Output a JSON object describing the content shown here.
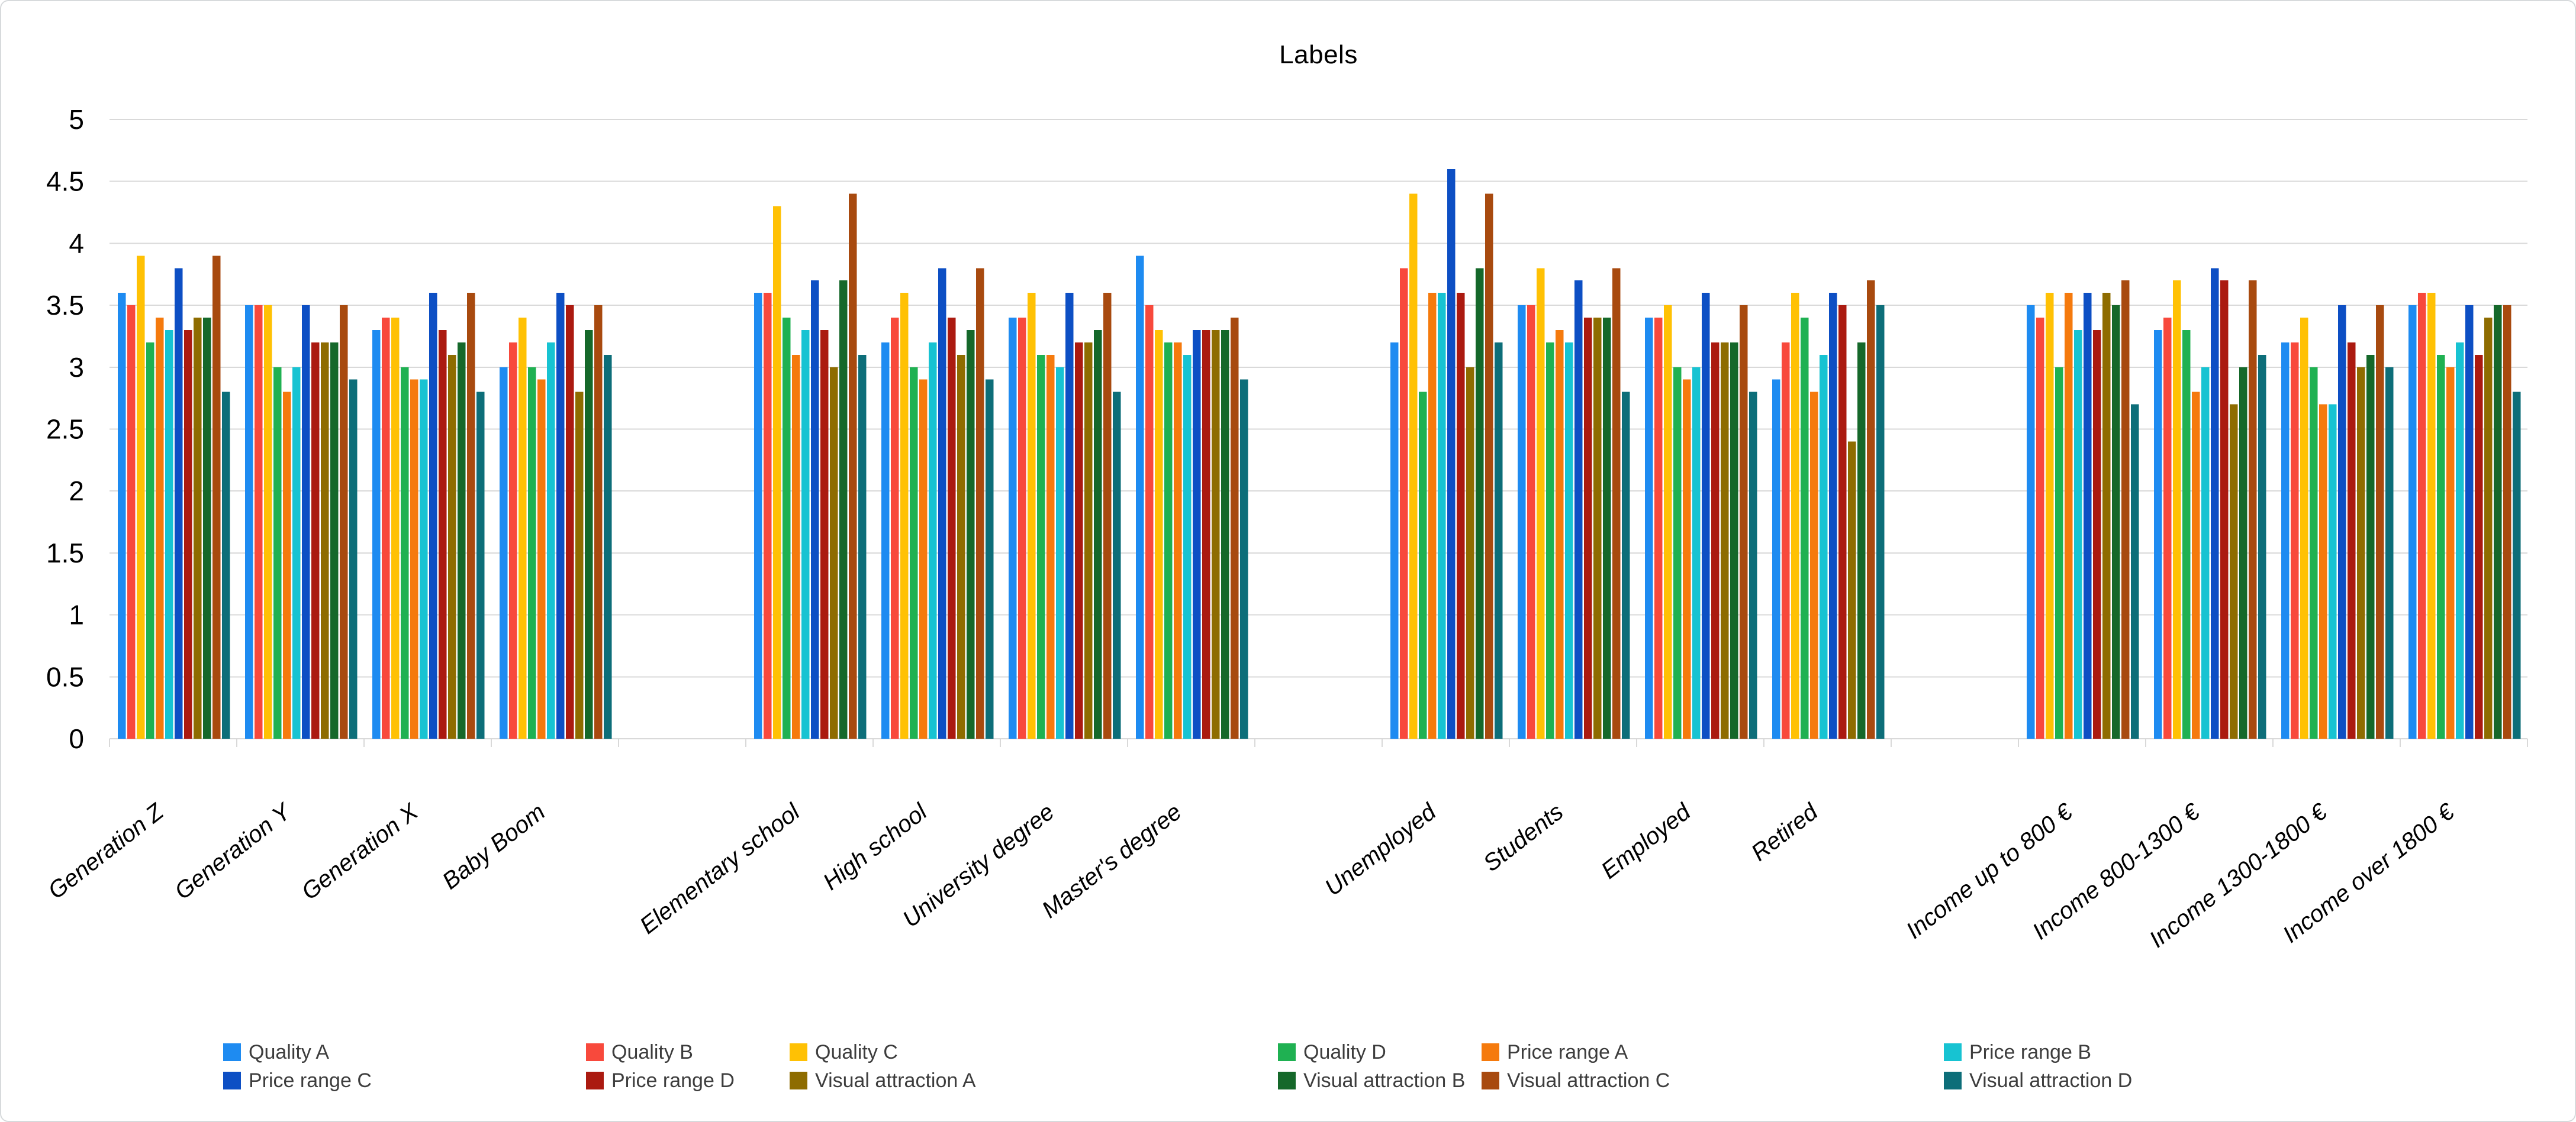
{
  "page": {
    "background": "#ffffff",
    "card_border_color": "#d7dadc",
    "gridline_color": "#d9d9d9",
    "axis_text_color": "#000000",
    "legend_text_color": "#3d3d3d"
  },
  "chart_data": {
    "type": "bar",
    "title": "Labels",
    "xlabel": "",
    "ylabel": "",
    "ylim": [
      0,
      5
    ],
    "ytick_step": 0.5,
    "y_ticks": [
      "0",
      "0.5",
      "1",
      "1.5",
      "2",
      "2.5",
      "3",
      "3.5",
      "4",
      "4.5",
      "5"
    ],
    "grid": true,
    "legend_position": "bottom",
    "legend_rows": [
      [
        "Quality A",
        "Quality B",
        "Quality C",
        "Quality D",
        "Price range A",
        "Price range B"
      ],
      [
        "Price range C",
        "Price range D",
        "Visual attraction A",
        "Visual attraction B",
        "Visual attraction C",
        "Visual attraction D"
      ]
    ],
    "cluster_size": 4,
    "categories": [
      "Generation Z",
      "Generation Y",
      "Generation X",
      "Baby Boom",
      "Elementary school",
      "High school",
      "University degree",
      "Master's degree",
      "Unemployed",
      "Students",
      "Employed",
      "Retired",
      "Income up to 800 €",
      "Income 800-1300 €",
      "Income 1300-1800 €",
      "Income over 1800 €"
    ],
    "series": [
      {
        "name": "Quality A",
        "color": "#1e8bf1",
        "values": [
          3.6,
          3.5,
          3.3,
          3.0,
          3.6,
          3.2,
          3.4,
          3.9,
          3.2,
          3.5,
          3.4,
          2.9,
          3.5,
          3.3,
          3.2,
          3.5
        ]
      },
      {
        "name": "Quality B",
        "color": "#f8493c",
        "values": [
          3.5,
          3.5,
          3.4,
          3.2,
          3.6,
          3.4,
          3.4,
          3.5,
          3.8,
          3.5,
          3.4,
          3.2,
          3.4,
          3.4,
          3.2,
          3.6
        ]
      },
      {
        "name": "Quality C",
        "color": "#ffc104",
        "values": [
          3.9,
          3.5,
          3.4,
          3.4,
          4.3,
          3.6,
          3.6,
          3.3,
          4.4,
          3.8,
          3.5,
          3.6,
          3.6,
          3.7,
          3.4,
          3.6
        ]
      },
      {
        "name": "Quality D",
        "color": "#1fb152",
        "values": [
          3.2,
          3.0,
          3.0,
          3.0,
          3.4,
          3.0,
          3.1,
          3.2,
          2.8,
          3.2,
          3.0,
          3.4,
          3.0,
          3.3,
          3.0,
          3.1
        ]
      },
      {
        "name": "Price range A",
        "color": "#f57a0d",
        "values": [
          3.4,
          2.8,
          2.9,
          2.9,
          3.1,
          2.9,
          3.1,
          3.2,
          3.6,
          3.3,
          2.9,
          2.8,
          3.6,
          2.8,
          2.7,
          3.0
        ]
      },
      {
        "name": "Price range B",
        "color": "#17c3d2",
        "values": [
          3.3,
          3.0,
          2.9,
          3.2,
          3.3,
          3.2,
          3.0,
          3.1,
          3.6,
          3.2,
          3.0,
          3.1,
          3.3,
          3.0,
          2.7,
          3.2
        ]
      },
      {
        "name": "Price range C",
        "color": "#0d4fc4",
        "values": [
          3.8,
          3.5,
          3.6,
          3.6,
          3.7,
          3.8,
          3.6,
          3.3,
          4.6,
          3.7,
          3.6,
          3.6,
          3.6,
          3.8,
          3.5,
          3.5
        ]
      },
      {
        "name": "Price range D",
        "color": "#ab1a10",
        "values": [
          3.3,
          3.2,
          3.3,
          3.5,
          3.3,
          3.4,
          3.2,
          3.3,
          3.6,
          3.4,
          3.2,
          3.5,
          3.3,
          3.7,
          3.2,
          3.1
        ]
      },
      {
        "name": "Visual attraction A",
        "color": "#8e6c00",
        "values": [
          3.4,
          3.2,
          3.1,
          2.8,
          3.0,
          3.1,
          3.2,
          3.3,
          3.0,
          3.4,
          3.2,
          2.4,
          3.6,
          2.7,
          3.0,
          3.4
        ]
      },
      {
        "name": "Visual attraction B",
        "color": "#15682a",
        "values": [
          3.4,
          3.2,
          3.2,
          3.3,
          3.7,
          3.3,
          3.3,
          3.3,
          3.8,
          3.4,
          3.2,
          3.2,
          3.5,
          3.0,
          3.1,
          3.5
        ]
      },
      {
        "name": "Visual attraction C",
        "color": "#a84a0f",
        "values": [
          3.9,
          3.5,
          3.6,
          3.5,
          4.4,
          3.8,
          3.6,
          3.4,
          4.4,
          3.8,
          3.5,
          3.7,
          3.7,
          3.7,
          3.5,
          3.5
        ]
      },
      {
        "name": "Visual attraction D",
        "color": "#0d6e79",
        "values": [
          2.8,
          2.9,
          2.8,
          3.1,
          3.1,
          2.9,
          2.8,
          2.9,
          3.2,
          2.8,
          2.8,
          3.5,
          2.7,
          3.1,
          3.0,
          2.8
        ]
      }
    ]
  }
}
